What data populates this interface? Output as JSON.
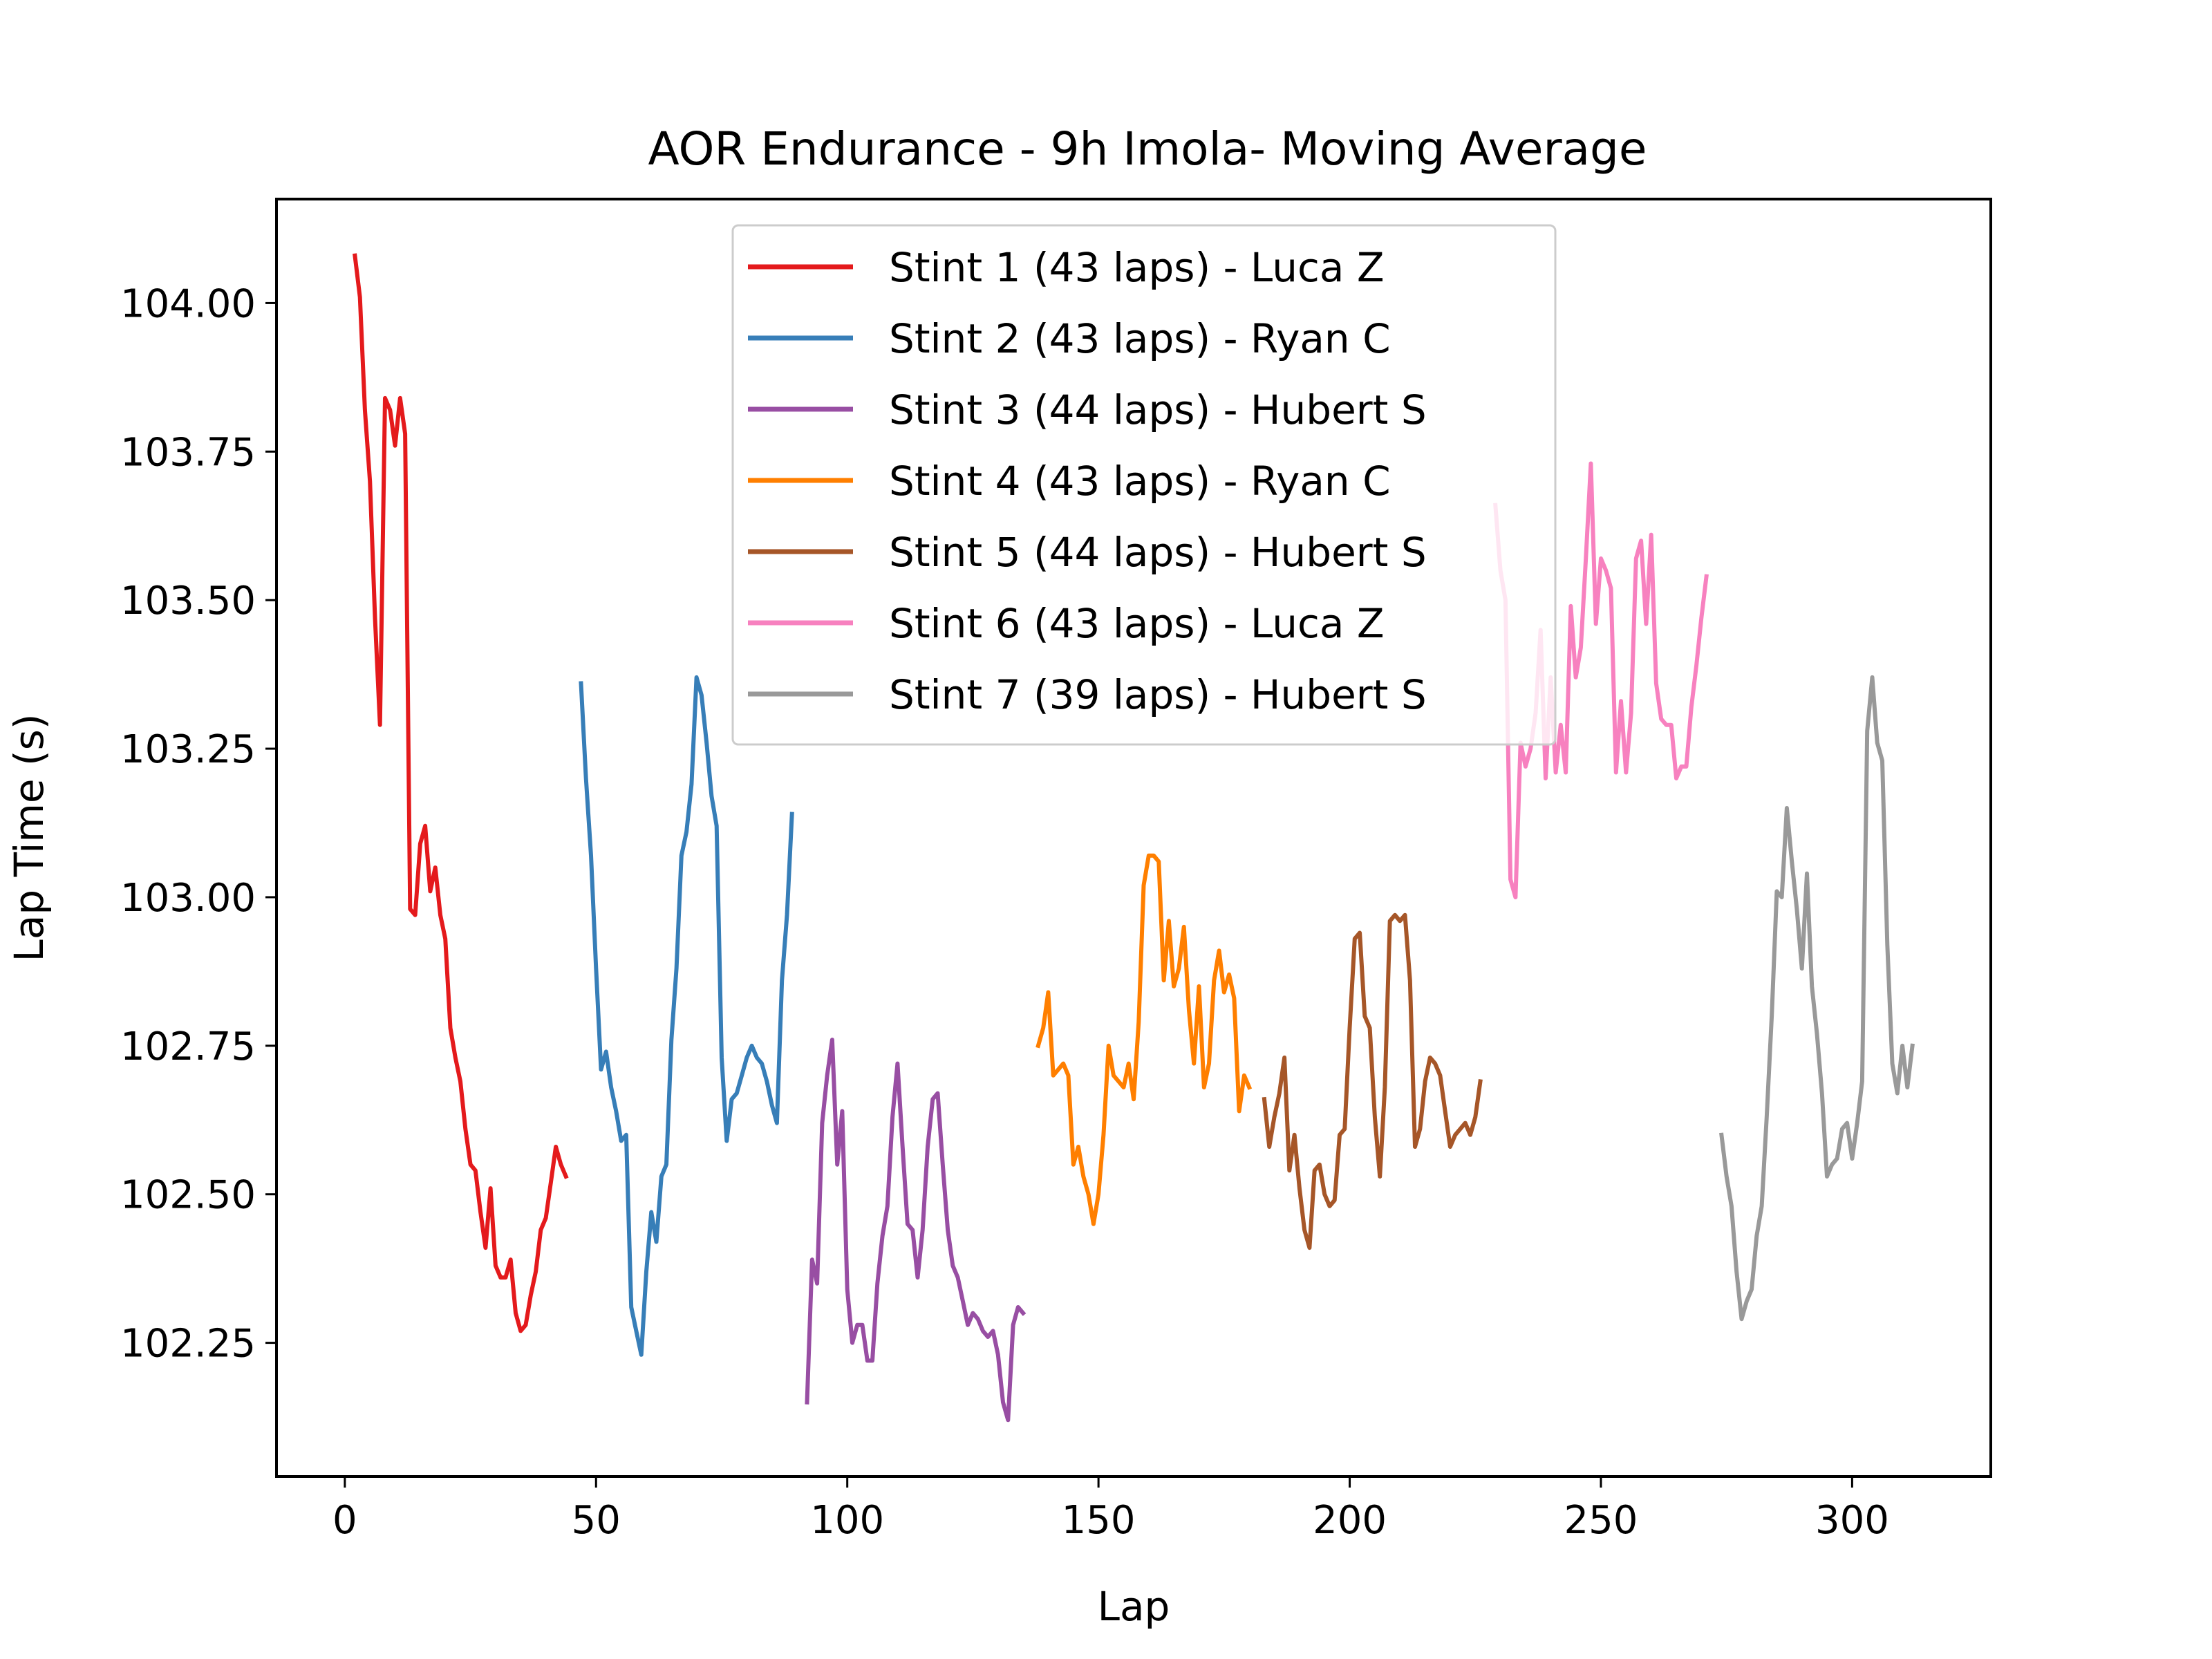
{
  "chart_data": {
    "type": "line",
    "title": "AOR Endurance - 9h Imola- Moving Average",
    "xlabel": "Lap",
    "ylabel": "Lap Time (s)",
    "xlim": [
      -13.6,
      327.6
    ],
    "ylim": [
      102.025,
      104.175
    ],
    "xticks": [
      0,
      50,
      100,
      150,
      200,
      250,
      300
    ],
    "xtick_labels": [
      "0",
      "50",
      "100",
      "150",
      "200",
      "250",
      "300"
    ],
    "yticks": [
      102.25,
      102.5,
      102.75,
      103.0,
      103.25,
      103.5,
      103.75,
      104.0
    ],
    "ytick_labels": [
      "102.25",
      "102.50",
      "102.75",
      "103.00",
      "103.25",
      "103.50",
      "103.75",
      "104.00"
    ],
    "grid": false,
    "legend_position": "upper center",
    "series": [
      {
        "name": "Stint 1 (43 laps) - Luca Z",
        "color": "#e41a1c",
        "x": [
          2,
          3,
          4,
          5,
          6,
          7,
          8,
          9,
          10,
          11,
          12,
          13,
          14,
          15,
          16,
          17,
          18,
          19,
          20,
          21,
          22,
          23,
          24,
          25,
          26,
          27,
          28,
          29,
          30,
          31,
          32,
          33,
          34,
          35,
          36,
          37,
          38,
          39,
          40,
          41,
          42,
          43,
          44
        ],
        "y": [
          104.08,
          104.01,
          103.82,
          103.7,
          103.47,
          103.29,
          103.84,
          103.82,
          103.76,
          103.84,
          103.78,
          102.98,
          102.97,
          103.09,
          103.12,
          103.01,
          103.05,
          102.97,
          102.93,
          102.78,
          102.73,
          102.69,
          102.61,
          102.55,
          102.54,
          102.47,
          102.41,
          102.51,
          102.38,
          102.36,
          102.36,
          102.39,
          102.3,
          102.27,
          102.28,
          102.33,
          102.37,
          102.44,
          102.46,
          102.52,
          102.58,
          102.55,
          102.53
        ]
      },
      {
        "name": "Stint 2 (43 laps) - Ryan C",
        "color": "#377eb8",
        "x": [
          47,
          48,
          49,
          50,
          51,
          52,
          53,
          54,
          55,
          56,
          57,
          58,
          59,
          60,
          61,
          62,
          63,
          64,
          65,
          66,
          67,
          68,
          69,
          70,
          71,
          72,
          73,
          74,
          75,
          76,
          77,
          78,
          79,
          80,
          81,
          82,
          83,
          84,
          85,
          86,
          87,
          88,
          89
        ],
        "y": [
          103.36,
          103.2,
          103.07,
          102.88,
          102.71,
          102.74,
          102.68,
          102.64,
          102.59,
          102.6,
          102.31,
          102.27,
          102.23,
          102.37,
          102.47,
          102.42,
          102.53,
          102.55,
          102.76,
          102.88,
          103.07,
          103.11,
          103.19,
          103.37,
          103.34,
          103.26,
          103.17,
          103.12,
          102.73,
          102.59,
          102.66,
          102.67,
          102.7,
          102.73,
          102.75,
          102.73,
          102.72,
          102.69,
          102.65,
          102.62,
          102.86,
          102.97,
          103.14
        ]
      },
      {
        "name": "Stint 3 (44 laps) - Hubert S",
        "color": "#984ea3",
        "x": [
          92,
          93,
          94,
          95,
          96,
          97,
          98,
          99,
          100,
          101,
          102,
          103,
          104,
          105,
          106,
          107,
          108,
          109,
          110,
          111,
          112,
          113,
          114,
          115,
          116,
          117,
          118,
          119,
          120,
          121,
          122,
          123,
          124,
          125,
          126,
          127,
          128,
          129,
          130,
          131,
          132,
          133,
          134,
          135
        ],
        "y": [
          102.15,
          102.39,
          102.35,
          102.62,
          102.7,
          102.76,
          102.55,
          102.64,
          102.34,
          102.25,
          102.28,
          102.28,
          102.22,
          102.22,
          102.35,
          102.43,
          102.48,
          102.63,
          102.72,
          102.58,
          102.45,
          102.44,
          102.36,
          102.44,
          102.58,
          102.66,
          102.67,
          102.55,
          102.44,
          102.38,
          102.36,
          102.32,
          102.28,
          102.3,
          102.29,
          102.27,
          102.26,
          102.27,
          102.23,
          102.15,
          102.12,
          102.28,
          102.31,
          102.3
        ]
      },
      {
        "name": "Stint 4 (43 laps) - Ryan C",
        "color": "#ff7f00",
        "x": [
          138,
          139,
          140,
          141,
          142,
          143,
          144,
          145,
          146,
          147,
          148,
          149,
          150,
          151,
          152,
          153,
          154,
          155,
          156,
          157,
          158,
          159,
          160,
          161,
          162,
          163,
          164,
          165,
          166,
          167,
          168,
          169,
          170,
          171,
          172,
          173,
          174,
          175,
          176,
          177,
          178,
          179,
          180
        ],
        "y": [
          102.75,
          102.78,
          102.84,
          102.7,
          102.71,
          102.72,
          102.7,
          102.55,
          102.58,
          102.53,
          102.5,
          102.45,
          102.5,
          102.6,
          102.75,
          102.7,
          102.69,
          102.68,
          102.72,
          102.66,
          102.79,
          103.02,
          103.07,
          103.07,
          103.06,
          102.86,
          102.96,
          102.85,
          102.88,
          102.95,
          102.81,
          102.72,
          102.85,
          102.68,
          102.72,
          102.86,
          102.91,
          102.84,
          102.87,
          102.83,
          102.64,
          102.7,
          102.68
        ]
      },
      {
        "name": "Stint 5 (44 laps) - Hubert S",
        "color": "#a65628",
        "x": [
          183,
          184,
          185,
          186,
          187,
          188,
          189,
          190,
          191,
          192,
          193,
          194,
          195,
          196,
          197,
          198,
          199,
          200,
          201,
          202,
          203,
          204,
          205,
          206,
          207,
          208,
          209,
          210,
          211,
          212,
          213,
          214,
          215,
          216,
          217,
          218,
          219,
          220,
          221,
          222,
          223,
          224,
          225,
          226
        ],
        "y": [
          102.66,
          102.58,
          102.63,
          102.67,
          102.73,
          102.54,
          102.6,
          102.51,
          102.44,
          102.41,
          102.54,
          102.55,
          102.5,
          102.48,
          102.49,
          102.6,
          102.61,
          102.78,
          102.93,
          102.94,
          102.8,
          102.78,
          102.63,
          102.53,
          102.68,
          102.96,
          102.97,
          102.96,
          102.97,
          102.86,
          102.58,
          102.61,
          102.69,
          102.73,
          102.72,
          102.7,
          102.64,
          102.58,
          102.6,
          102.61,
          102.62,
          102.6,
          102.63,
          102.69
        ]
      },
      {
        "name": "Stint 6 (43 laps) - Luca Z",
        "color": "#f781bf",
        "x": [
          229,
          230,
          231,
          232,
          233,
          234,
          235,
          236,
          237,
          238,
          239,
          240,
          241,
          242,
          243,
          244,
          245,
          246,
          247,
          248,
          249,
          250,
          251,
          252,
          253,
          254,
          255,
          256,
          257,
          258,
          259,
          260,
          261,
          262,
          263,
          264,
          265,
          266,
          267,
          268,
          269,
          270,
          271
        ],
        "y": [
          103.66,
          103.55,
          103.5,
          103.03,
          103.0,
          103.26,
          103.22,
          103.25,
          103.31,
          103.45,
          103.2,
          103.37,
          103.21,
          103.29,
          103.21,
          103.49,
          103.37,
          103.42,
          103.57,
          103.73,
          103.46,
          103.57,
          103.55,
          103.52,
          103.21,
          103.33,
          103.21,
          103.31,
          103.57,
          103.6,
          103.46,
          103.61,
          103.36,
          103.3,
          103.29,
          103.29,
          103.2,
          103.22,
          103.22,
          103.32,
          103.39,
          103.47,
          103.54
        ]
      },
      {
        "name": "Stint 7 (39 laps) - Hubert S",
        "color": "#999999",
        "x": [
          274,
          275,
          276,
          277,
          278,
          279,
          280,
          281,
          282,
          283,
          284,
          285,
          286,
          287,
          288,
          289,
          290,
          291,
          292,
          293,
          294,
          295,
          296,
          297,
          298,
          299,
          300,
          301,
          302,
          303,
          304,
          305,
          306,
          307,
          308,
          309,
          310,
          311,
          312
        ],
        "y": [
          102.6,
          102.53,
          102.48,
          102.37,
          102.29,
          102.32,
          102.34,
          102.43,
          102.48,
          102.63,
          102.8,
          103.01,
          103.0,
          103.15,
          103.06,
          102.98,
          102.88,
          103.04,
          102.85,
          102.77,
          102.67,
          102.53,
          102.55,
          102.56,
          102.61,
          102.62,
          102.56,
          102.62,
          102.69,
          103.28,
          103.37,
          103.26,
          103.23,
          102.92,
          102.72,
          102.67,
          102.75,
          102.68,
          102.75
        ]
      }
    ]
  }
}
